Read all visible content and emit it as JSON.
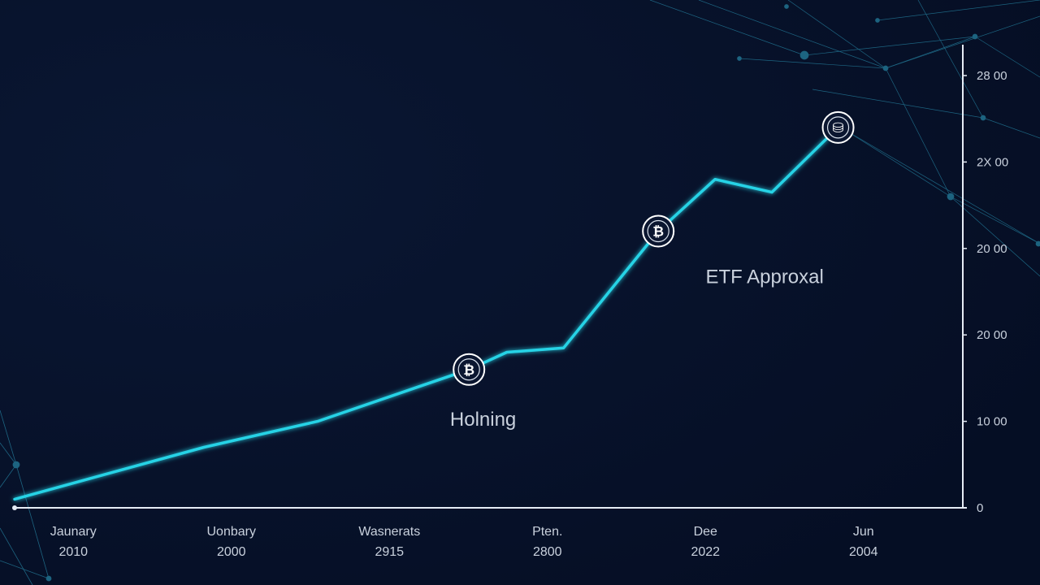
{
  "chart_data": {
    "type": "line",
    "title": "",
    "xlabel": "",
    "ylabel": "",
    "x_ticks": [
      {
        "month": "Jaunary",
        "year": "2010"
      },
      {
        "month": "Uonbary",
        "year": "2000"
      },
      {
        "month": "Wasnerats",
        "year": "2915"
      },
      {
        "month": "Pten.",
        "year": "2800"
      },
      {
        "month": "Dee",
        "year": "2022"
      },
      {
        "month": "Jun",
        "year": "2004"
      }
    ],
    "y_ticks": [
      "0",
      "10 00",
      "20 00",
      "20 00",
      "2X 00",
      "28 00"
    ],
    "ylim": [
      0,
      5
    ],
    "series": [
      {
        "name": "",
        "color": "#27d3e6",
        "points": [
          [
            0,
            0.1
          ],
          [
            0.5,
            0.4
          ],
          [
            1,
            0.7
          ],
          [
            1.6,
            1.0
          ],
          [
            2.2,
            1.45
          ],
          [
            2.4,
            1.6
          ],
          [
            2.6,
            1.8
          ],
          [
            2.9,
            1.85
          ],
          [
            3.4,
            3.2
          ],
          [
            3.7,
            3.8
          ],
          [
            4.0,
            3.65
          ],
          [
            4.35,
            4.4
          ]
        ]
      }
    ],
    "markers": [
      {
        "x": 2.4,
        "y": 1.6,
        "icon": "bitcoin-icon",
        "glyph": "₿"
      },
      {
        "x": 3.4,
        "y": 3.2,
        "icon": "bitcoin-icon",
        "glyph": "₿"
      },
      {
        "x": 4.35,
        "y": 4.4,
        "icon": "coin-stack-icon",
        "glyph": "⛁"
      }
    ],
    "annotations": [
      {
        "text": "Holning",
        "x": 2.3,
        "y": 0.95
      },
      {
        "text": "ETF Approxal",
        "x": 3.65,
        "y": 2.6
      }
    ],
    "grid": false,
    "legend": "none"
  },
  "colors": {
    "background": "#07112a",
    "line": "#27d3e6",
    "axis": "#e6ecf5",
    "text": "#c9d1dd",
    "network": "#2fa8c9"
  }
}
